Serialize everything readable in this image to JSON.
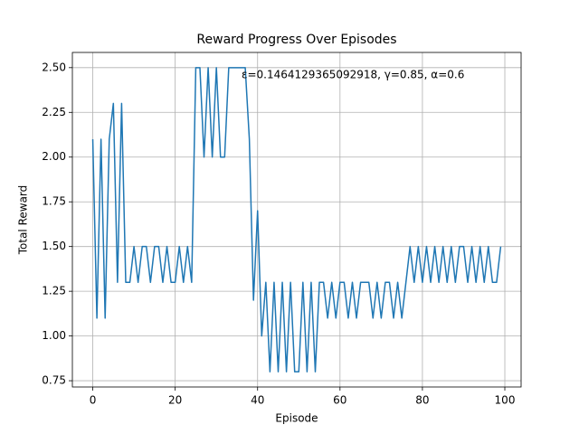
{
  "chart_data": {
    "type": "line",
    "title": "Reward Progress Over Episodes",
    "xlabel": "Episode",
    "ylabel": "Total Reward",
    "annotation": "ε=0.1464129365092918, γ=0.85, α=0.6",
    "color": "#1f77b4",
    "grid": true,
    "x": [
      0,
      1,
      2,
      3,
      4,
      5,
      6,
      7,
      8,
      9,
      10,
      11,
      12,
      13,
      14,
      15,
      16,
      17,
      18,
      19,
      20,
      21,
      22,
      23,
      24,
      25,
      26,
      27,
      28,
      29,
      30,
      31,
      32,
      33,
      34,
      35,
      36,
      37,
      38,
      39,
      40,
      41,
      42,
      43,
      44,
      45,
      46,
      47,
      48,
      49,
      50,
      51,
      52,
      53,
      54,
      55,
      56,
      57,
      58,
      59,
      60,
      61,
      62,
      63,
      64,
      65,
      66,
      67,
      68,
      69,
      70,
      71,
      72,
      73,
      74,
      75,
      76,
      77,
      78,
      79,
      80,
      81,
      82,
      83,
      84,
      85,
      86,
      87,
      88,
      89,
      90,
      91,
      92,
      93,
      94,
      95,
      96,
      97,
      98,
      99
    ],
    "values": [
      2.1,
      1.1,
      2.1,
      1.1,
      2.1,
      2.3,
      1.3,
      2.3,
      1.3,
      1.3,
      1.5,
      1.3,
      1.5,
      1.5,
      1.3,
      1.5,
      1.5,
      1.3,
      1.5,
      1.3,
      1.3,
      1.5,
      1.3,
      1.5,
      1.3,
      2.5,
      2.5,
      2.0,
      2.5,
      2.0,
      2.5,
      2.0,
      2.0,
      2.5,
      2.5,
      2.5,
      2.5,
      2.5,
      2.1,
      1.2,
      1.7,
      1.0,
      1.3,
      0.8,
      1.3,
      0.8,
      1.3,
      0.8,
      1.3,
      0.8,
      0.8,
      1.3,
      0.8,
      1.3,
      0.8,
      1.3,
      1.3,
      1.1,
      1.3,
      1.1,
      1.3,
      1.3,
      1.1,
      1.3,
      1.1,
      1.3,
      1.3,
      1.3,
      1.1,
      1.3,
      1.1,
      1.3,
      1.3,
      1.1,
      1.3,
      1.1,
      1.3,
      1.5,
      1.3,
      1.5,
      1.3,
      1.5,
      1.3,
      1.5,
      1.3,
      1.5,
      1.3,
      1.5,
      1.3,
      1.5,
      1.5,
      1.3,
      1.5,
      1.3,
      1.5,
      1.3,
      1.5,
      1.3,
      1.3,
      1.5
    ],
    "xlim": [
      -4.95,
      103.95
    ],
    "ylim": [
      0.715,
      2.585
    ],
    "xticks": [
      0,
      20,
      40,
      60,
      80,
      100
    ],
    "yticks": [
      0.75,
      {
        "value": 1,
        "label": "1.00"
      },
      1.25,
      {
        "value": 1.5,
        "label": "1.50"
      },
      1.75,
      {
        "value": 2,
        "label": "2.00"
      },
      2.25,
      {
        "value": 2.5,
        "label": "2.50"
      }
    ]
  }
}
